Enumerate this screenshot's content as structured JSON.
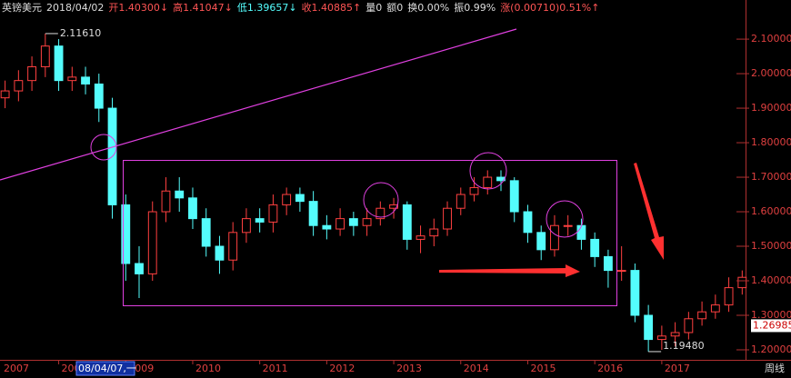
{
  "chart_data": {
    "type": "candlestick",
    "title": "英镑美元",
    "date": "2018/04/02",
    "quote": [
      {
        "text": "开1.40300↓",
        "color": "#ff5555"
      },
      {
        "text": "高1.41047↓",
        "color": "#ff5555"
      },
      {
        "text": "低1.39657↓",
        "color": "#55ffff"
      },
      {
        "text": "收1.40885↑",
        "color": "#ff5555"
      },
      {
        "text": "量0",
        "color": "#dddddd"
      },
      {
        "text": "额0",
        "color": "#dddddd"
      },
      {
        "text": "换0.00%",
        "color": "#dddddd"
      },
      {
        "text": "振0.99%",
        "color": "#dddddd"
      },
      {
        "text": "涨(0.00710)0.51%↑",
        "color": "#ff5555"
      }
    ],
    "up_color": "#ff4040",
    "down_color": "#54fcfc",
    "x": [
      2007.2,
      2007.4,
      2007.6,
      2007.8,
      2008.0,
      2008.2,
      2008.4,
      2008.6,
      2008.8,
      2009.0,
      2009.2,
      2009.4,
      2009.6,
      2009.8,
      2010.0,
      2010.2,
      2010.4,
      2010.6,
      2010.8,
      2011.0,
      2011.2,
      2011.4,
      2011.6,
      2011.8,
      2012.0,
      2012.2,
      2012.4,
      2012.6,
      2012.8,
      2013.0,
      2013.2,
      2013.4,
      2013.6,
      2013.8,
      2014.0,
      2014.2,
      2014.4,
      2014.6,
      2014.8,
      2015.0,
      2015.2,
      2015.4,
      2015.6,
      2015.8,
      2016.0,
      2016.2,
      2016.4,
      2016.6,
      2016.8,
      2017.0,
      2017.2,
      2017.4,
      2017.6,
      2017.8,
      2018.0,
      2018.2
    ],
    "open": [
      1.93,
      1.95,
      1.98,
      2.02,
      2.08,
      1.98,
      1.99,
      1.97,
      1.9,
      1.62,
      1.45,
      1.42,
      1.6,
      1.66,
      1.64,
      1.58,
      1.5,
      1.46,
      1.54,
      1.58,
      1.57,
      1.62,
      1.65,
      1.63,
      1.56,
      1.55,
      1.58,
      1.56,
      1.58,
      1.61,
      1.62,
      1.52,
      1.53,
      1.55,
      1.61,
      1.65,
      1.67,
      1.7,
      1.69,
      1.6,
      1.54,
      1.49,
      1.56,
      1.56,
      1.52,
      1.47,
      1.43,
      1.43,
      1.3,
      1.23,
      1.24,
      1.25,
      1.29,
      1.31,
      1.33,
      1.38
    ],
    "high": [
      1.98,
      2.01,
      2.05,
      2.1161,
      2.1,
      2.02,
      2.02,
      2.0,
      1.93,
      1.65,
      1.5,
      1.63,
      1.7,
      1.7,
      1.67,
      1.61,
      1.53,
      1.57,
      1.61,
      1.61,
      1.65,
      1.67,
      1.67,
      1.66,
      1.59,
      1.61,
      1.6,
      1.61,
      1.63,
      1.64,
      1.63,
      1.56,
      1.58,
      1.63,
      1.67,
      1.7,
      1.72,
      1.72,
      1.7,
      1.62,
      1.56,
      1.59,
      1.59,
      1.58,
      1.54,
      1.49,
      1.5,
      1.45,
      1.33,
      1.27,
      1.28,
      1.31,
      1.34,
      1.36,
      1.41,
      1.43
    ],
    "low": [
      1.9,
      1.92,
      1.95,
      1.99,
      1.95,
      1.95,
      1.94,
      1.86,
      1.58,
      1.4,
      1.35,
      1.4,
      1.57,
      1.6,
      1.55,
      1.47,
      1.42,
      1.43,
      1.51,
      1.54,
      1.54,
      1.59,
      1.6,
      1.53,
      1.52,
      1.53,
      1.53,
      1.53,
      1.56,
      1.58,
      1.49,
      1.48,
      1.5,
      1.53,
      1.59,
      1.63,
      1.65,
      1.66,
      1.57,
      1.51,
      1.46,
      1.47,
      1.53,
      1.49,
      1.44,
      1.38,
      1.4,
      1.28,
      1.1948,
      1.2,
      1.21,
      1.23,
      1.27,
      1.29,
      1.31,
      1.36
    ],
    "close": [
      1.95,
      1.98,
      2.02,
      2.08,
      1.98,
      1.99,
      1.97,
      1.9,
      1.62,
      1.45,
      1.42,
      1.6,
      1.66,
      1.64,
      1.58,
      1.5,
      1.46,
      1.54,
      1.58,
      1.57,
      1.62,
      1.65,
      1.63,
      1.56,
      1.55,
      1.58,
      1.56,
      1.58,
      1.61,
      1.62,
      1.52,
      1.53,
      1.55,
      1.61,
      1.65,
      1.67,
      1.7,
      1.69,
      1.6,
      1.54,
      1.49,
      1.56,
      1.56,
      1.52,
      1.47,
      1.43,
      1.43,
      1.3,
      1.23,
      1.24,
      1.25,
      1.29,
      1.31,
      1.33,
      1.38,
      1.41
    ],
    "xlim": [
      2007.124,
      2018.25
    ],
    "xticks": [
      2007,
      2008,
      2009,
      2010,
      2011,
      2012,
      2013,
      2014,
      2015,
      2016,
      2017
    ],
    "ylim": [
      1.171,
      2.166
    ],
    "yticks": [
      {
        "value": 1.2,
        "label": "1.20000"
      },
      {
        "value": 1.3,
        "label": "1.30000"
      },
      {
        "value": 1.4,
        "label": "1.40000"
      },
      {
        "value": 1.5,
        "label": "1.50000"
      },
      {
        "value": 1.6,
        "label": "1.60000"
      },
      {
        "value": 1.7,
        "label": "1.70000"
      },
      {
        "value": 1.8,
        "label": "1.80000"
      },
      {
        "value": 1.9,
        "label": "1.90000"
      },
      {
        "value": 2.0,
        "label": "2.00000"
      },
      {
        "value": 2.1,
        "label": "2.10000"
      }
    ],
    "grid": true,
    "max_label": "2.11610",
    "min_label": "1.19480",
    "price_marker": {
      "value": 1.26985,
      "label": "1.26985"
    },
    "cursor_label": "08/04/07,一",
    "period": "周线"
  }
}
